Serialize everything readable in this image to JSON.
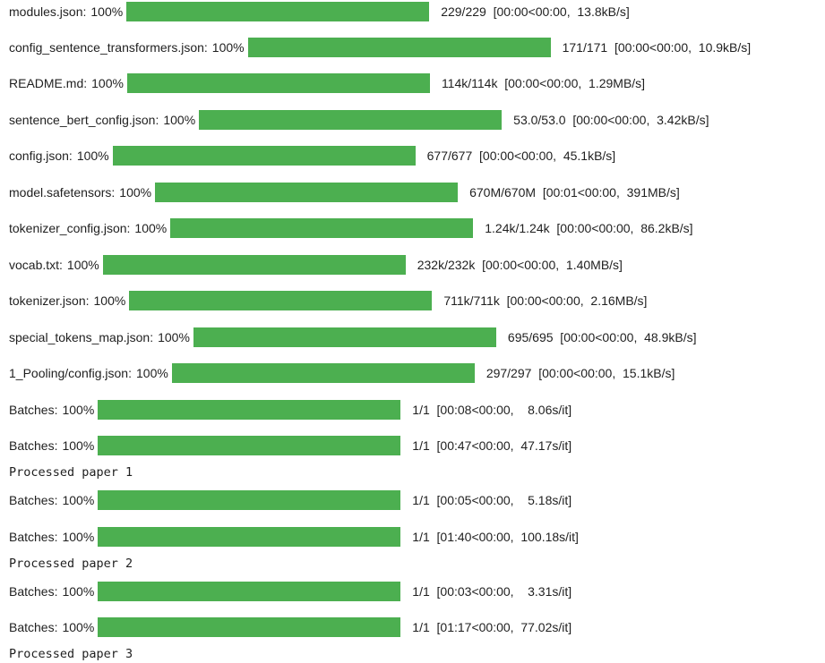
{
  "accent_color": "#4caf50",
  "download_bars": [
    {
      "label": "modules.json:",
      "percent_text": "100%",
      "progress": 1.0,
      "stats": "229/229  [00:00<00:00,  13.8kB/s]"
    },
    {
      "label": "config_sentence_transformers.json:",
      "percent_text": "100%",
      "progress": 1.0,
      "stats": "171/171  [00:00<00:00,  10.9kB/s]"
    },
    {
      "label": "README.md:",
      "percent_text": "100%",
      "progress": 1.0,
      "stats": "114k/114k  [00:00<00:00,  1.29MB/s]"
    },
    {
      "label": "sentence_bert_config.json:",
      "percent_text": "100%",
      "progress": 1.0,
      "stats": "53.0/53.0  [00:00<00:00,  3.42kB/s]"
    },
    {
      "label": "config.json:",
      "percent_text": "100%",
      "progress": 1.0,
      "stats": "677/677  [00:00<00:00,  45.1kB/s]"
    },
    {
      "label": "model.safetensors:",
      "percent_text": "100%",
      "progress": 1.0,
      "stats": "670M/670M  [00:01<00:00,  391MB/s]"
    },
    {
      "label": "tokenizer_config.json:",
      "percent_text": "100%",
      "progress": 1.0,
      "stats": "1.24k/1.24k  [00:00<00:00,  86.2kB/s]"
    },
    {
      "label": "vocab.txt:",
      "percent_text": "100%",
      "progress": 1.0,
      "stats": "232k/232k  [00:00<00:00,  1.40MB/s]"
    },
    {
      "label": "tokenizer.json:",
      "percent_text": "100%",
      "progress": 1.0,
      "stats": "711k/711k  [00:00<00:00,  2.16MB/s]"
    },
    {
      "label": "special_tokens_map.json:",
      "percent_text": "100%",
      "progress": 1.0,
      "stats": "695/695  [00:00<00:00,  48.9kB/s]"
    },
    {
      "label": "1_Pooling/config.json:",
      "percent_text": "100%",
      "progress": 1.0,
      "stats": "297/297  [00:00<00:00,  15.1kB/s]"
    }
  ],
  "batch_bars": [
    {
      "label": "Batches:",
      "percent_text": "100%",
      "progress": 1.0,
      "stats": "1/1  [00:08<00:00,    8.06s/it]"
    },
    {
      "label": "Batches:",
      "percent_text": "100%",
      "progress": 1.0,
      "stats": "1/1  [00:47<00:00,  47.17s/it]"
    },
    {
      "label": "Batches:",
      "percent_text": "100%",
      "progress": 1.0,
      "stats": "1/1  [00:05<00:00,    5.18s/it]"
    },
    {
      "label": "Batches:",
      "percent_text": "100%",
      "progress": 1.0,
      "stats": "1/1  [01:40<00:00,  100.18s/it]"
    },
    {
      "label": "Batches:",
      "percent_text": "100%",
      "progress": 1.0,
      "stats": "1/1  [00:03<00:00,    3.31s/it]"
    },
    {
      "label": "Batches:",
      "percent_text": "100%",
      "progress": 1.0,
      "stats": "1/1  [01:17<00:00,  77.02s/it]"
    }
  ],
  "processed_lines": [
    "Processed paper 1",
    "Processed paper 2",
    "Processed paper 3"
  ]
}
